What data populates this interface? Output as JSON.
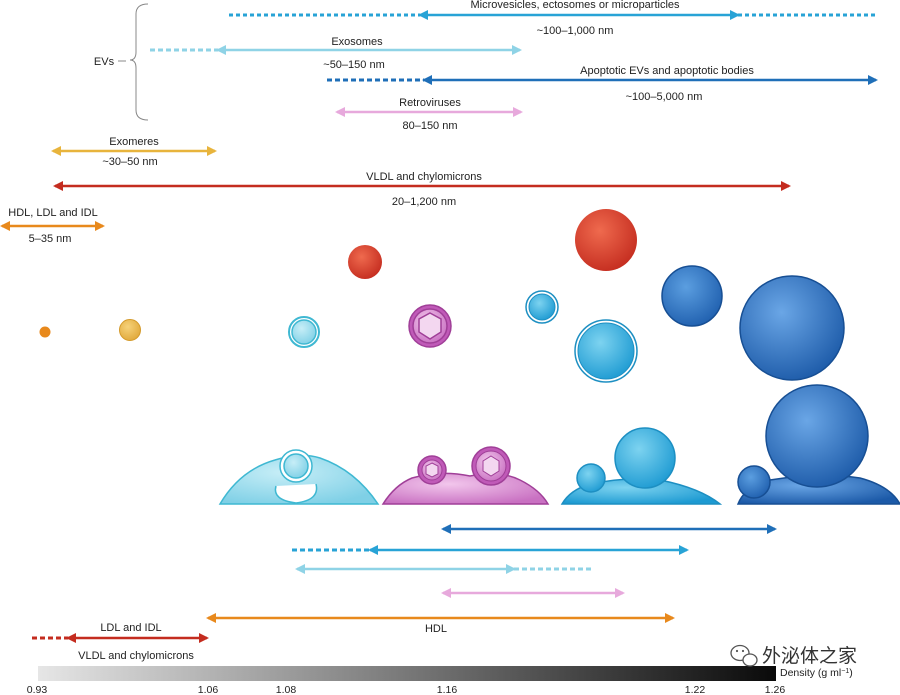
{
  "colors": {
    "orange": "#e8891c",
    "yellow": "#e8b43c",
    "red": "#c42c1f",
    "cyan_light": "#8fd3e6",
    "sky": "#28a3d6",
    "pink": "#e7a9dc",
    "blue_dark": "#1f6fb8",
    "exomere_yellow": "#e4b24a"
  },
  "top_section": {
    "evs_label": "EVs",
    "microvesicles_label": "Microvesicles, ectosomes or microparticles",
    "microvesicles_range": "~100–1,000 nm",
    "exosomes_label": "Exosomes",
    "exosomes_range": "~50–150 nm",
    "apoptotic_label": "Apoptotic EVs and apoptotic bodies",
    "apoptotic_range": "~100–5,000 nm",
    "retroviruses_label": "Retroviruses",
    "retroviruses_range": "80–150 nm",
    "exomeres_label": "Exomeres",
    "exomeres_range": "~30–50 nm",
    "vldl_label": "VLDL and chylomicrons",
    "vldl_range": "20–1,200 nm",
    "hdl_label": "HDL, LDL and IDL",
    "hdl_range": "5–35 nm"
  },
  "bottom_section": {
    "hdl_label": "HDL",
    "ldl_idl_label": "LDL and IDL",
    "vldl_label": "VLDL and chylomicrons"
  },
  "density_axis": {
    "label": "Density (g ml",
    "label_sup": "−1",
    "label_close": ")",
    "ticks": [
      "0.93",
      "1.06",
      "1.08",
      "1.16",
      "1.22",
      "1.26"
    ]
  },
  "watermark": "外泌体之家"
}
